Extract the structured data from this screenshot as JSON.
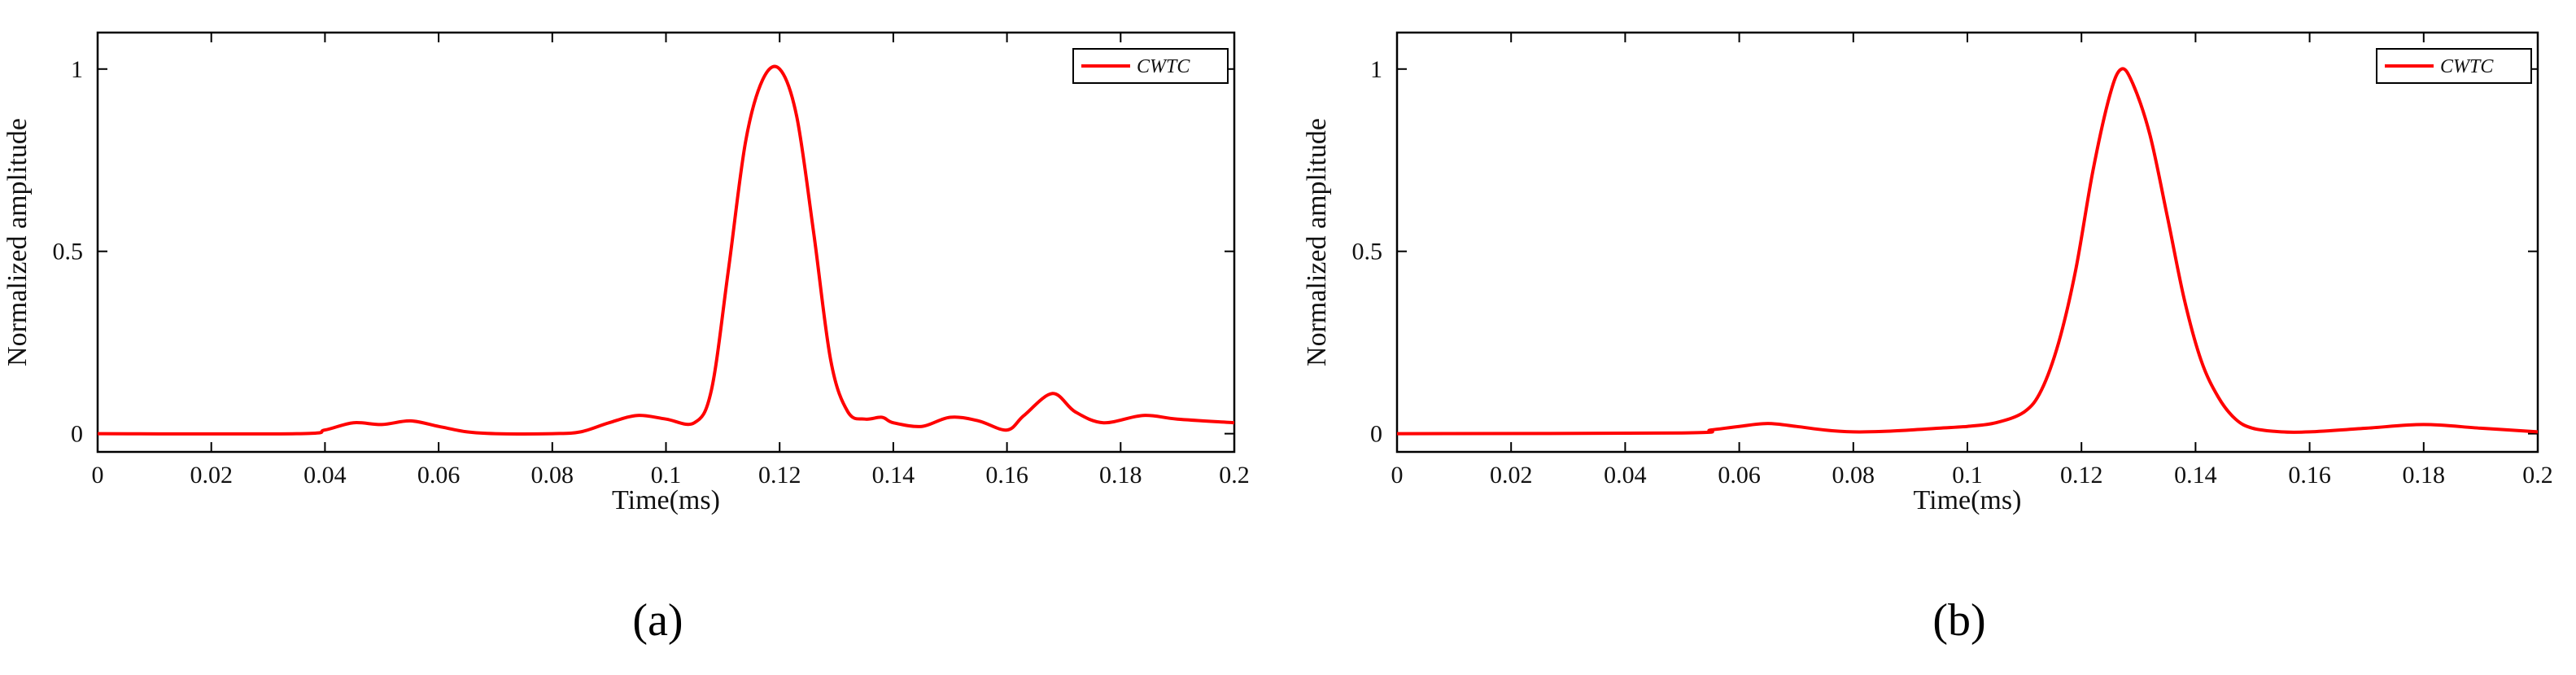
{
  "chart_data": [
    {
      "type": "line",
      "caption": "(a)",
      "xlabel": "Time(ms)",
      "ylabel": "Normalized amplitude",
      "xlim": [
        0,
        0.2
      ],
      "ylim": [
        -0.05,
        1.1
      ],
      "xticks": [
        0,
        0.02,
        0.04,
        0.06,
        0.08,
        0.1,
        0.12,
        0.14,
        0.16,
        0.18,
        0.2
      ],
      "xtick_labels": [
        "0",
        "0.02",
        "0.04",
        "0.06",
        "0.08",
        "0.1",
        "0.12",
        "0.14",
        "0.16",
        "0.18",
        "0.2"
      ],
      "yticks": [
        0,
        0.5,
        1
      ],
      "ytick_labels": [
        "0",
        "0.5",
        "1"
      ],
      "grid": false,
      "legend_position": "top-right",
      "series": [
        {
          "name": "CWTC",
          "color": "#ff0000",
          "x": [
            0,
            0.035,
            0.04,
            0.045,
            0.05,
            0.055,
            0.06,
            0.065,
            0.07,
            0.08,
            0.085,
            0.09,
            0.095,
            0.1,
            0.105,
            0.108,
            0.111,
            0.114,
            0.117,
            0.12,
            0.123,
            0.126,
            0.129,
            0.132,
            0.135,
            0.138,
            0.14,
            0.145,
            0.15,
            0.155,
            0.16,
            0.163,
            0.168,
            0.172,
            0.177,
            0.184,
            0.19,
            0.2
          ],
          "y": [
            0,
            0,
            0.01,
            0.03,
            0.025,
            0.035,
            0.02,
            0.005,
            0.0,
            0.0,
            0.005,
            0.03,
            0.05,
            0.04,
            0.03,
            0.12,
            0.45,
            0.8,
            0.97,
            1.0,
            0.87,
            0.55,
            0.2,
            0.06,
            0.04,
            0.045,
            0.03,
            0.02,
            0.045,
            0.035,
            0.01,
            0.05,
            0.11,
            0.06,
            0.03,
            0.05,
            0.04,
            0.03
          ]
        }
      ]
    },
    {
      "type": "line",
      "caption": "(b)",
      "xlabel": "Time(ms)",
      "ylabel": "Normalized amplitude",
      "xlim": [
        0,
        0.2
      ],
      "ylim": [
        -0.05,
        1.1
      ],
      "xticks": [
        0,
        0.02,
        0.04,
        0.06,
        0.08,
        0.1,
        0.12,
        0.14,
        0.16,
        0.18,
        0.2
      ],
      "xtick_labels": [
        "0",
        "0.02",
        "0.04",
        "0.06",
        "0.08",
        "0.1",
        "0.12",
        "0.14",
        "0.16",
        "0.18",
        "0.2"
      ],
      "yticks": [
        0,
        0.5,
        1
      ],
      "ytick_labels": [
        "0",
        "0.5",
        "1"
      ],
      "grid": false,
      "legend_position": "top-right",
      "series": [
        {
          "name": "CWTC",
          "color": "#ff0000",
          "x": [
            0,
            0.05,
            0.055,
            0.06,
            0.065,
            0.07,
            0.075,
            0.08,
            0.085,
            0.09,
            0.095,
            0.1,
            0.105,
            0.11,
            0.113,
            0.116,
            0.119,
            0.122,
            0.125,
            0.127,
            0.129,
            0.132,
            0.135,
            0.138,
            0.141,
            0.144,
            0.147,
            0.15,
            0.155,
            0.16,
            0.17,
            0.18,
            0.19,
            0.2
          ],
          "y": [
            0,
            0.002,
            0.01,
            0.02,
            0.028,
            0.02,
            0.01,
            0.005,
            0.006,
            0.01,
            0.015,
            0.02,
            0.03,
            0.06,
            0.12,
            0.25,
            0.45,
            0.72,
            0.93,
            1.0,
            0.96,
            0.82,
            0.6,
            0.37,
            0.2,
            0.1,
            0.04,
            0.015,
            0.005,
            0.005,
            0.015,
            0.025,
            0.015,
            0.005
          ]
        }
      ]
    }
  ]
}
